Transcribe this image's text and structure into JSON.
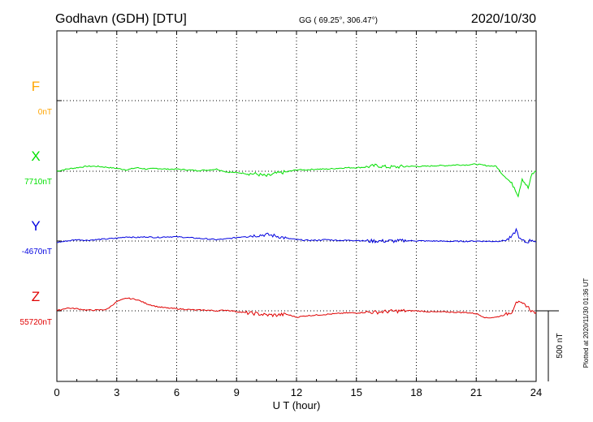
{
  "header": {
    "station": "Godhavn (GDH)  [DTU]",
    "coords": "GG ( 69.25°, 306.47°)",
    "date": "2020/10/30"
  },
  "footer": {
    "plotted": "Plotted at 2020/11/30 01:36 UT",
    "scale_label": "500 nT"
  },
  "colors": {
    "F": "#ffa500",
    "X": "#00e000",
    "Y": "#0000e0",
    "Z": "#e00000",
    "axis": "#000000"
  },
  "chart_data": {
    "type": "line",
    "title": "Godhavn (GDH)  [DTU]",
    "xlabel": "U T (hour)",
    "xlim": [
      0,
      24
    ],
    "xticks": [
      0,
      3,
      6,
      9,
      12,
      15,
      18,
      21,
      24
    ],
    "grid": true,
    "scale_bar_nT": 500,
    "series": [
      {
        "name": "F",
        "baseline_label": "0nT",
        "values": []
      },
      {
        "name": "X",
        "baseline_label": "7710nT",
        "x": [
          0,
          0.5,
          1,
          1.5,
          2,
          2.5,
          3,
          3.5,
          4,
          4.5,
          5,
          5.5,
          6,
          6.5,
          7,
          7.5,
          8,
          8.5,
          9,
          9.5,
          10,
          10.5,
          11,
          11.5,
          12,
          12.5,
          13,
          13.5,
          14,
          14.5,
          15,
          15.5,
          16,
          16.5,
          17,
          17.5,
          18,
          18.5,
          19,
          19.5,
          20,
          20.5,
          21,
          21.5,
          22,
          22.3,
          22.6,
          22.9,
          23.1,
          23.3,
          23.6,
          23.8,
          24
        ],
        "values": [
          7710,
          7725,
          7735,
          7745,
          7745,
          7738,
          7730,
          7720,
          7735,
          7725,
          7730,
          7725,
          7725,
          7720,
          7715,
          7718,
          7725,
          7705,
          7700,
          7695,
          7690,
          7675,
          7695,
          7705,
          7720,
          7720,
          7725,
          7725,
          7730,
          7735,
          7735,
          7740,
          7750,
          7740,
          7740,
          7745,
          7745,
          7745,
          7750,
          7750,
          7755,
          7755,
          7760,
          7750,
          7745,
          7690,
          7650,
          7600,
          7540,
          7660,
          7590,
          7690,
          7710
        ]
      },
      {
        "name": "Y",
        "baseline_label": "-4670nT",
        "x": [
          0,
          0.5,
          1,
          1.5,
          2,
          2.5,
          3,
          3.5,
          4,
          4.5,
          5,
          5.5,
          6,
          6.5,
          7,
          7.5,
          8,
          8.5,
          9,
          9.5,
          10,
          10.5,
          11,
          11.5,
          12,
          12.5,
          13,
          13.5,
          14,
          14.5,
          15,
          15.5,
          16,
          16.5,
          17,
          17.5,
          18,
          18.5,
          19,
          19.5,
          20,
          20.5,
          21,
          21.5,
          22,
          22.5,
          22.8,
          23,
          23.2,
          23.5,
          23.8,
          24
        ],
        "values": [
          -4680,
          -4670,
          -4660,
          -4665,
          -4660,
          -4655,
          -4650,
          -4640,
          -4645,
          -4640,
          -4645,
          -4640,
          -4640,
          -4645,
          -4650,
          -4655,
          -4660,
          -4655,
          -4645,
          -4635,
          -4630,
          -4625,
          -4635,
          -4650,
          -4660,
          -4665,
          -4665,
          -4660,
          -4665,
          -4665,
          -4665,
          -4670,
          -4670,
          -4670,
          -4670,
          -4668,
          -4668,
          -4670,
          -4670,
          -4672,
          -4672,
          -4672,
          -4670,
          -4672,
          -4672,
          -4665,
          -4640,
          -4590,
          -4660,
          -4680,
          -4660,
          -4675
        ]
      },
      {
        "name": "Z",
        "baseline_label": "55720nT",
        "x": [
          0,
          0.5,
          1,
          1.5,
          2,
          2.5,
          3,
          3.5,
          4,
          4.5,
          5,
          5.5,
          6,
          6.5,
          7,
          7.5,
          8,
          8.5,
          9,
          9.5,
          10,
          10.5,
          11,
          11.5,
          12,
          12.5,
          13,
          13.5,
          14,
          14.5,
          15,
          15.5,
          16,
          16.5,
          17,
          17.5,
          18,
          18.5,
          19,
          19.5,
          20,
          20.5,
          21,
          21.5,
          22,
          22.5,
          22.8,
          23,
          23.2,
          23.5,
          23.8,
          24
        ],
        "values": [
          55720,
          55740,
          55735,
          55725,
          55725,
          55730,
          55785,
          55810,
          55800,
          55770,
          55750,
          55740,
          55735,
          55730,
          55725,
          55725,
          55720,
          55725,
          55715,
          55705,
          55700,
          55690,
          55690,
          55695,
          55675,
          55685,
          55690,
          55695,
          55700,
          55705,
          55705,
          55710,
          55710,
          55715,
          55718,
          55720,
          55720,
          55715,
          55712,
          55712,
          55710,
          55708,
          55700,
          55670,
          55675,
          55695,
          55715,
          55790,
          55770,
          55760,
          55715,
          55710
        ]
      }
    ]
  }
}
